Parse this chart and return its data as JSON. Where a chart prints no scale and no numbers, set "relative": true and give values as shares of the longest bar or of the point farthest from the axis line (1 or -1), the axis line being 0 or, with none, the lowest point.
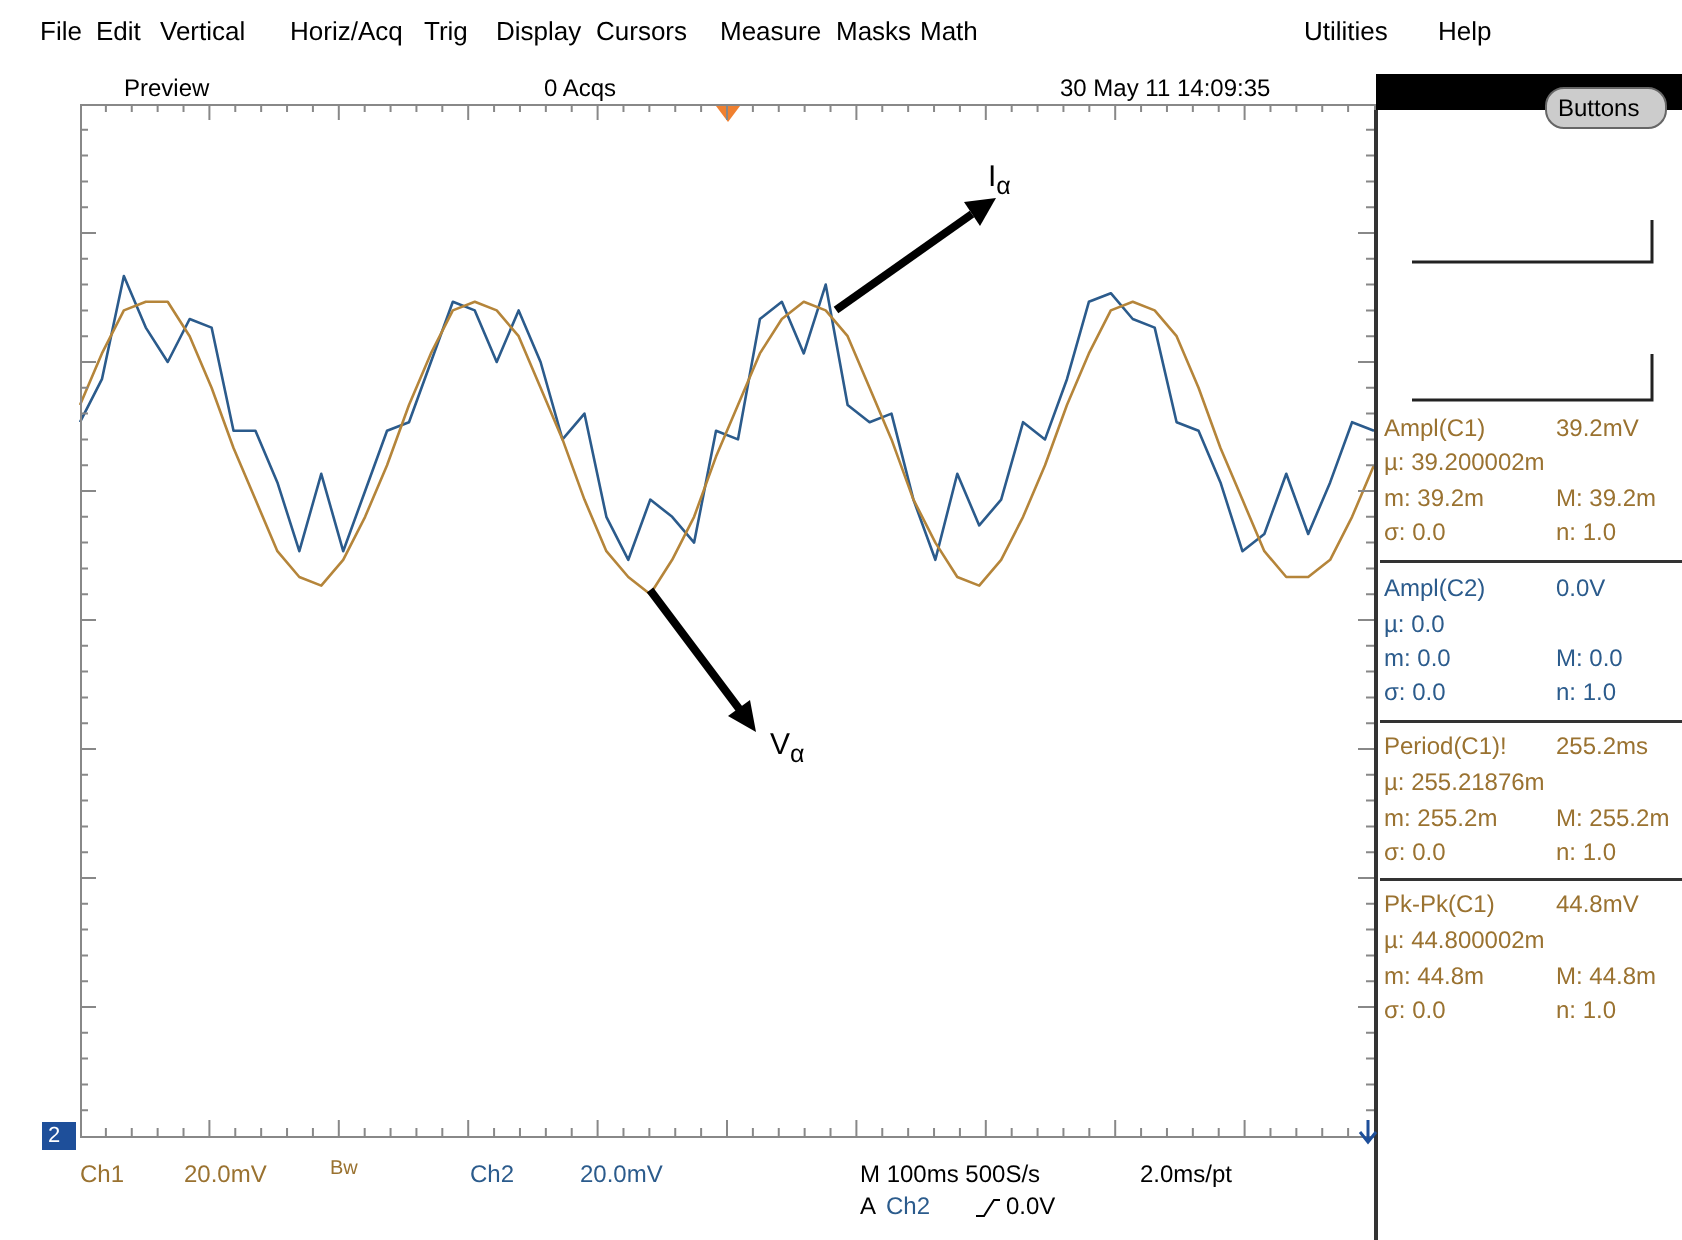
{
  "chart_data": {
    "type": "line",
    "relative": true,
    "marker": "none",
    "categories": [
      null,
      null,
      null,
      null,
      null,
      null,
      null,
      null,
      null,
      null,
      null,
      null,
      null,
      null,
      null,
      null,
      null,
      null,
      null,
      null,
      null,
      null,
      null,
      null,
      null,
      null,
      null,
      null,
      null,
      null,
      null,
      null,
      null,
      null,
      null,
      null,
      null,
      null,
      null,
      null,
      null,
      null,
      null,
      null,
      null,
      null,
      null,
      null,
      null,
      null,
      null,
      null,
      null,
      null,
      null,
      null,
      null,
      null,
      null,
      null
    ],
    "series": [
      {
        "color": "#b5853a",
        "values": [
          0.85,
          0.91,
          0.96,
          0.97,
          0.97,
          0.93,
          0.87,
          0.8,
          0.74,
          0.68,
          0.65,
          0.64,
          0.67,
          0.72,
          0.78,
          0.85,
          0.91,
          0.96,
          0.97,
          0.96,
          0.93,
          0.87,
          0.81,
          0.74,
          0.68,
          0.65,
          0.63,
          0.67,
          0.72,
          0.79,
          0.85,
          0.91,
          0.95,
          0.97,
          0.96,
          0.93,
          0.87,
          0.81,
          0.74,
          0.69,
          0.65,
          0.64,
          0.67,
          0.72,
          0.78,
          0.85,
          0.91,
          0.96,
          0.97,
          0.96,
          0.93,
          0.87,
          0.8,
          0.74,
          0.68,
          0.65,
          0.65,
          0.67,
          0.72,
          0.78
        ]
      },
      {
        "color": "#2b5b8c",
        "values": [
          0.83,
          0.88,
          1.0,
          0.94,
          0.9,
          0.95,
          0.94,
          0.82,
          0.82,
          0.76,
          0.68,
          0.77,
          0.68,
          0.75,
          0.82,
          0.83,
          0.9,
          0.97,
          0.96,
          0.9,
          0.96,
          0.9,
          0.81,
          0.84,
          0.72,
          0.67,
          0.74,
          0.72,
          0.69,
          0.82,
          0.81,
          0.95,
          0.97,
          0.91,
          0.99,
          0.85,
          0.83,
          0.84,
          0.74,
          0.67,
          0.77,
          0.71,
          0.74,
          0.83,
          0.81,
          0.88,
          0.97,
          0.98,
          0.95,
          0.94,
          0.83,
          0.82,
          0.76,
          0.68,
          0.7,
          0.77,
          0.7,
          0.76,
          0.83,
          0.82
        ]
      }
    ],
    "annotations": [
      "File",
      "Edit",
      "Vertical",
      "Horiz/Acq",
      "Trig",
      "Display",
      "Cursors",
      "Measure",
      "Masks",
      "Math",
      "Utilities",
      "Help",
      "Preview",
      "0 Acqs",
      "30 May 11 14:09:35",
      "Buttons",
      "I$_{α}$",
      "V$_{α}$",
      "Ampl(C1)",
      "39.2mV",
      "µ: 39.200002m",
      "m: 39.2m",
      "M: 39.2m",
      "σ: 0.0",
      "n: 1.0",
      "Ampl(C2)",
      "0.0V",
      "µ: 0.0",
      "m: 0.0",
      "M: 0.0",
      "σ: 0.0",
      "n: 1.0",
      "Period(C1)!",
      "255.2ms",
      "µ: 255.21876m",
      "m: 255.2m",
      "M: 255.2m",
      "σ: 0.0",
      "n: 1.0",
      "Pk-Pk(C1)",
      "44.8mV",
      "µ: 44.800002m",
      "m: 44.8m",
      "M: 44.8m",
      "σ: 0.0",
      "n: 1.0",
      "Ch1",
      "20.0mV",
      "Bw",
      "Ch2",
      "20.0mV",
      "M 100ms 500S/s",
      "2.0ms/pt",
      "A",
      "Ch2",
      "0.0V",
      "2"
    ]
  }
}
